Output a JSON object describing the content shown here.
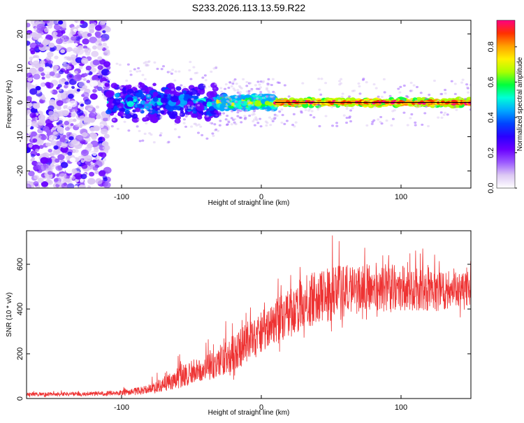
{
  "page": {
    "title": "S233.2026.113.13.59.R22"
  },
  "chart_data": [
    {
      "type": "heatmap",
      "title": "S233.2026.113.13.59.R22",
      "xlabel": "Height of straight line (km)",
      "ylabel": "Frequency (Hz)",
      "xlim": [
        -168,
        150
      ],
      "ylim": [
        -25,
        24
      ],
      "x_ticks": [
        -100,
        0,
        100
      ],
      "y_ticks": [
        -20,
        -10,
        0,
        10,
        20
      ],
      "colorbar": {
        "label": "Normalized spectral amplitude",
        "range": [
          0,
          0.95
        ],
        "ticks": [
          0.0,
          0.2,
          0.4,
          0.6,
          0.8
        ],
        "tick_labels": [
          "0.0",
          "0.2",
          "0.4",
          "0.6",
          "0.8"
        ],
        "colors": [
          "#ffffff",
          "#dcc8f4",
          "#9b59ff",
          "#6a00ff",
          "#2a00ff",
          "#0044ff",
          "#00a8ff",
          "#00ffd8",
          "#00ff3c",
          "#aaff00",
          "#fff000",
          "#ffa000",
          "#ff3000",
          "#ff0080"
        ]
      },
      "center_line_hz": 0,
      "regions": [
        {
          "x_from": -168,
          "x_to": -110,
          "description": "broad diffuse noise",
          "amplitude": [
            0.05,
            0.3
          ]
        },
        {
          "x_from": -110,
          "x_to": -30,
          "freq_spread_hz": [
            -6,
            6
          ],
          "amplitude": [
            0.2,
            0.55
          ]
        },
        {
          "x_from": -30,
          "x_to": 10,
          "freq_spread_hz": [
            -2,
            2
          ],
          "amplitude": [
            0.4,
            0.8
          ]
        },
        {
          "x_from": 10,
          "x_to": 150,
          "freq_spread_hz": [
            -1,
            1
          ],
          "amplitude": [
            0.6,
            0.95
          ]
        }
      ]
    },
    {
      "type": "line",
      "xlabel": "Height of straight line (km)",
      "ylabel": "SNR (10 * v/v)",
      "xlim": [
        -168,
        150
      ],
      "ylim": [
        0,
        750
      ],
      "x_ticks": [
        -100,
        0,
        100
      ],
      "y_ticks": [
        0,
        200,
        400,
        600
      ],
      "color": "#ee3333",
      "envelope": {
        "x": [
          -168,
          -130,
          -100,
          -80,
          -60,
          -40,
          -20,
          0,
          20,
          30,
          50,
          70,
          90,
          110,
          130,
          150
        ],
        "mean": [
          18,
          20,
          25,
          40,
          90,
          140,
          200,
          300,
          380,
          430,
          470,
          490,
          500,
          490,
          480,
          490
        ],
        "min": [
          5,
          5,
          8,
          15,
          30,
          50,
          80,
          140,
          200,
          250,
          290,
          320,
          340,
          330,
          320,
          340
        ],
        "max": [
          35,
          38,
          50,
          90,
          200,
          280,
          380,
          480,
          600,
          680,
          740,
          720,
          745,
          680,
          650,
          620
        ]
      }
    }
  ]
}
